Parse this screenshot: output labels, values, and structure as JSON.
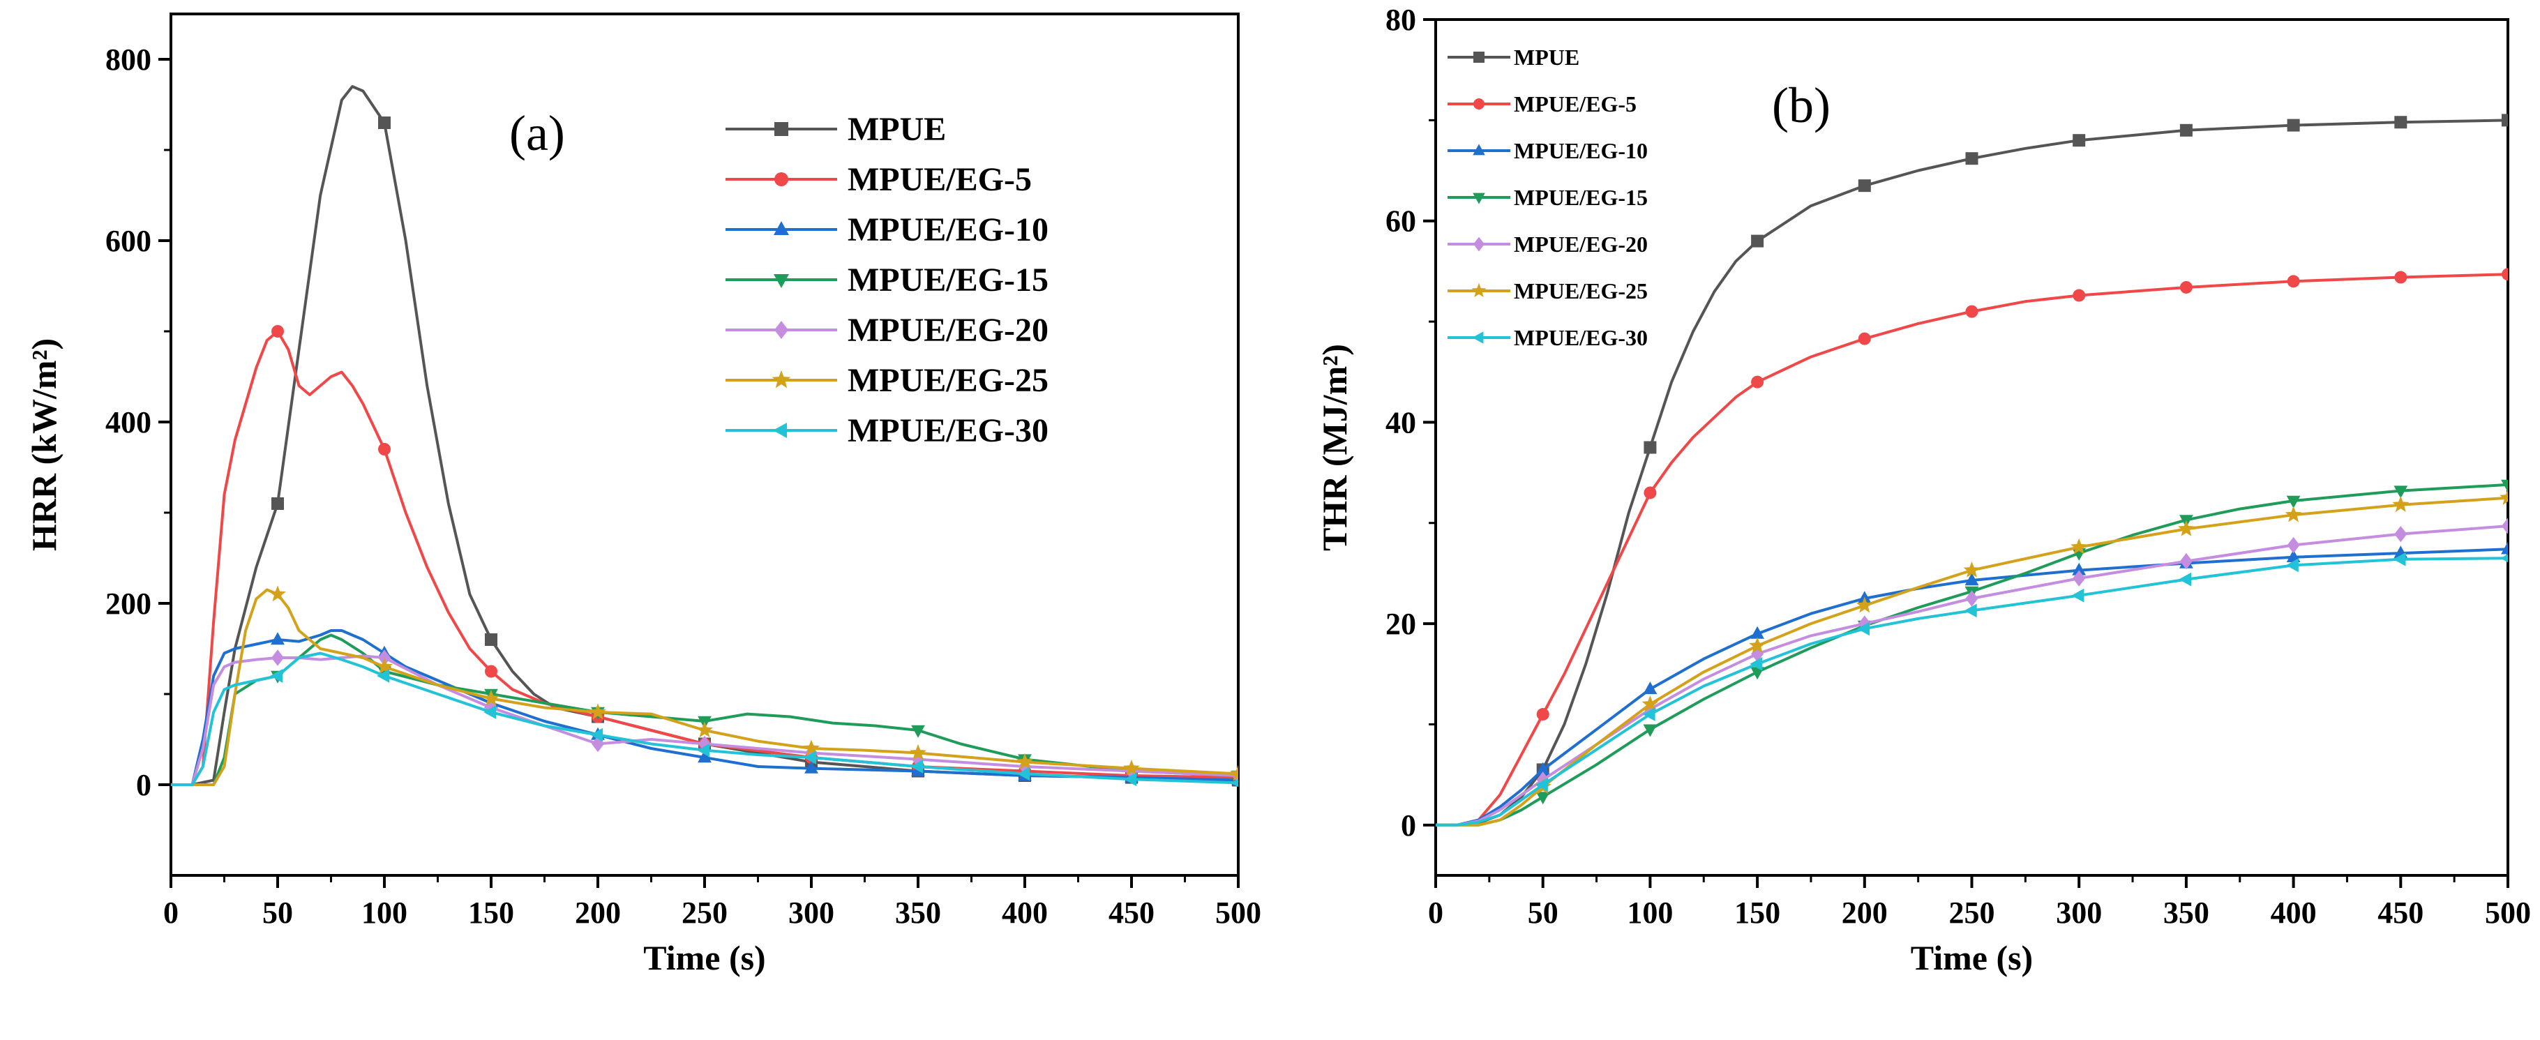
{
  "chart_data": [
    {
      "type": "line",
      "panel_label": "(a)",
      "xlabel": "Time (s)",
      "ylabel": "HRR (kW/m²)",
      "xlim": [
        0,
        500
      ],
      "ylim": [
        -100,
        850
      ],
      "xticks": [
        0,
        50,
        100,
        150,
        200,
        250,
        300,
        350,
        400,
        450,
        500
      ],
      "yticks": [
        0,
        200,
        400,
        600,
        800
      ],
      "legend_position": "top-right",
      "grid": false,
      "series": [
        {
          "name": "MPUE",
          "color": "#555555",
          "marker": "square",
          "x": [
            0,
            10,
            20,
            25,
            30,
            40,
            50,
            60,
            70,
            80,
            85,
            90,
            100,
            110,
            120,
            130,
            140,
            150,
            160,
            170,
            180,
            190,
            200,
            225,
            250,
            275,
            300,
            350,
            400,
            450,
            500
          ],
          "y": [
            0,
            0,
            5,
            80,
            150,
            240,
            310,
            480,
            650,
            755,
            770,
            765,
            730,
            600,
            440,
            310,
            210,
            160,
            125,
            100,
            85,
            80,
            75,
            60,
            45,
            35,
            25,
            15,
            10,
            8,
            5
          ]
        },
        {
          "name": "MPUE/EG-5",
          "color": "#f04848",
          "marker": "circle",
          "x": [
            0,
            10,
            15,
            20,
            25,
            30,
            40,
            45,
            50,
            55,
            60,
            65,
            70,
            75,
            80,
            85,
            90,
            100,
            110,
            120,
            130,
            140,
            150,
            160,
            175,
            200,
            225,
            250,
            300,
            350,
            400,
            450,
            500
          ],
          "y": [
            0,
            0,
            20,
            180,
            320,
            380,
            460,
            490,
            500,
            480,
            440,
            430,
            440,
            450,
            455,
            440,
            420,
            370,
            300,
            240,
            190,
            150,
            125,
            105,
            90,
            75,
            60,
            45,
            30,
            20,
            15,
            10,
            8
          ]
        },
        {
          "name": "MPUE/EG-10",
          "color": "#1e6fd0",
          "marker": "triangle-up",
          "x": [
            0,
            10,
            15,
            20,
            25,
            30,
            40,
            50,
            60,
            70,
            75,
            80,
            85,
            90,
            100,
            110,
            125,
            150,
            175,
            200,
            225,
            250,
            275,
            300,
            350,
            400,
            450,
            500
          ],
          "y": [
            0,
            0,
            50,
            120,
            145,
            150,
            155,
            160,
            158,
            165,
            170,
            170,
            165,
            160,
            145,
            130,
            115,
            90,
            70,
            55,
            40,
            30,
            20,
            18,
            15,
            10,
            8,
            5
          ]
        },
        {
          "name": "MPUE/EG-15",
          "color": "#1f9c5a",
          "marker": "triangle-down",
          "x": [
            0,
            10,
            20,
            25,
            30,
            40,
            50,
            60,
            70,
            75,
            80,
            90,
            100,
            125,
            150,
            175,
            200,
            225,
            250,
            270,
            290,
            310,
            330,
            350,
            370,
            400,
            450,
            500
          ],
          "y": [
            0,
            0,
            0,
            30,
            100,
            115,
            120,
            140,
            160,
            165,
            160,
            145,
            125,
            110,
            100,
            90,
            80,
            75,
            70,
            78,
            75,
            68,
            65,
            60,
            45,
            28,
            15,
            10
          ]
        },
        {
          "name": "MPUE/EG-20",
          "color": "#c48de0",
          "marker": "diamond",
          "x": [
            0,
            10,
            15,
            20,
            25,
            30,
            40,
            50,
            60,
            70,
            80,
            90,
            100,
            125,
            150,
            175,
            200,
            225,
            250,
            275,
            300,
            350,
            400,
            450,
            500
          ],
          "y": [
            0,
            0,
            40,
            110,
            130,
            135,
            138,
            140,
            140,
            138,
            140,
            142,
            140,
            110,
            85,
            65,
            45,
            50,
            45,
            40,
            35,
            28,
            20,
            15,
            10
          ]
        },
        {
          "name": "MPUE/EG-25",
          "color": "#d4a21a",
          "marker": "star",
          "x": [
            0,
            10,
            20,
            25,
            30,
            35,
            40,
            45,
            50,
            55,
            60,
            70,
            80,
            90,
            100,
            125,
            150,
            175,
            200,
            225,
            250,
            275,
            300,
            325,
            350,
            375,
            400,
            450,
            500
          ],
          "y": [
            0,
            0,
            0,
            20,
            100,
            170,
            205,
            215,
            210,
            195,
            170,
            150,
            145,
            140,
            130,
            110,
            95,
            85,
            80,
            78,
            60,
            48,
            40,
            38,
            35,
            30,
            25,
            18,
            12
          ]
        },
        {
          "name": "MPUE/EG-30",
          "color": "#22c3d6",
          "marker": "triangle-left",
          "x": [
            0,
            10,
            15,
            20,
            25,
            30,
            40,
            50,
            60,
            70,
            80,
            90,
            100,
            125,
            150,
            175,
            200,
            225,
            250,
            275,
            300,
            350,
            400,
            450,
            500
          ],
          "y": [
            0,
            0,
            20,
            80,
            105,
            110,
            115,
            120,
            140,
            145,
            138,
            130,
            120,
            100,
            80,
            65,
            55,
            45,
            38,
            33,
            30,
            20,
            12,
            6,
            2
          ]
        }
      ]
    },
    {
      "type": "line",
      "panel_label": "(b)",
      "xlabel": "Time (s)",
      "ylabel": "THR (MJ/m²)",
      "xlim": [
        0,
        500
      ],
      "ylim": [
        -5,
        80
      ],
      "xticks": [
        0,
        50,
        100,
        150,
        200,
        250,
        300,
        350,
        400,
        450,
        500
      ],
      "yticks": [
        0,
        20,
        40,
        60,
        80
      ],
      "legend_position": "top-left",
      "grid": false,
      "series": [
        {
          "name": "MPUE",
          "color": "#555555",
          "marker": "square",
          "x": [
            0,
            10,
            20,
            30,
            40,
            50,
            60,
            70,
            80,
            90,
            100,
            110,
            120,
            130,
            140,
            150,
            175,
            200,
            225,
            250,
            275,
            300,
            350,
            400,
            450,
            500
          ],
          "y": [
            0,
            0,
            0.2,
            1,
            2.8,
            5.5,
            10,
            16,
            23,
            31,
            37.5,
            44,
            49,
            53,
            56,
            58,
            61.5,
            63.5,
            65,
            66.2,
            67.2,
            68,
            69,
            69.5,
            69.8,
            70
          ]
        },
        {
          "name": "MPUE/EG-5",
          "color": "#f04848",
          "marker": "circle",
          "x": [
            0,
            10,
            20,
            30,
            40,
            50,
            60,
            70,
            80,
            90,
            100,
            110,
            120,
            130,
            140,
            150,
            175,
            200,
            225,
            250,
            275,
            300,
            350,
            400,
            450,
            500
          ],
          "y": [
            0,
            0,
            0.5,
            3,
            7,
            11,
            15,
            19.5,
            24,
            28.5,
            33,
            36,
            38.5,
            40.5,
            42.5,
            44,
            46.5,
            48.3,
            49.8,
            51,
            52,
            52.6,
            53.4,
            54,
            54.4,
            54.7
          ]
        },
        {
          "name": "MPUE/EG-10",
          "color": "#1e6fd0",
          "marker": "triangle-up",
          "x": [
            0,
            10,
            20,
            30,
            40,
            50,
            75,
            100,
            125,
            150,
            175,
            200,
            225,
            250,
            300,
            350,
            400,
            450,
            500
          ],
          "y": [
            0,
            0,
            0.5,
            1.8,
            3.5,
            5.5,
            9.5,
            13.5,
            16.5,
            19,
            21,
            22.5,
            23.5,
            24.3,
            25.3,
            26,
            26.6,
            27,
            27.4
          ]
        },
        {
          "name": "MPUE/EG-15",
          "color": "#1f9c5a",
          "marker": "triangle-down",
          "x": [
            0,
            10,
            20,
            30,
            40,
            50,
            75,
            100,
            125,
            150,
            175,
            200,
            225,
            250,
            275,
            300,
            325,
            350,
            375,
            400,
            450,
            500
          ],
          "y": [
            0,
            0,
            0,
            0.5,
            1.5,
            2.8,
            6,
            9.5,
            12.5,
            15.2,
            17.6,
            19.8,
            21.6,
            23.2,
            25,
            27,
            28.8,
            30.3,
            31.4,
            32.2,
            33.2,
            33.8
          ]
        },
        {
          "name": "MPUE/EG-20",
          "color": "#c48de0",
          "marker": "diamond",
          "x": [
            0,
            10,
            20,
            30,
            40,
            50,
            75,
            100,
            125,
            150,
            175,
            200,
            225,
            250,
            300,
            350,
            400,
            450,
            500
          ],
          "y": [
            0,
            0,
            0.4,
            1.5,
            3,
            4.5,
            8,
            11.5,
            14.5,
            17,
            18.8,
            20,
            21.2,
            22.5,
            24.5,
            26.2,
            27.8,
            28.9,
            29.7
          ]
        },
        {
          "name": "MPUE/EG-25",
          "color": "#d4a21a",
          "marker": "star",
          "x": [
            0,
            10,
            20,
            30,
            40,
            50,
            75,
            100,
            125,
            150,
            175,
            200,
            225,
            250,
            300,
            350,
            400,
            450,
            500
          ],
          "y": [
            0,
            0,
            0,
            0.5,
            2,
            3.8,
            8,
            12,
            15.2,
            17.8,
            20,
            21.8,
            23.6,
            25.3,
            27.6,
            29.4,
            30.8,
            31.8,
            32.5
          ]
        },
        {
          "name": "MPUE/EG-30",
          "color": "#22c3d6",
          "marker": "triangle-left",
          "x": [
            0,
            10,
            20,
            30,
            40,
            50,
            75,
            100,
            125,
            150,
            175,
            200,
            225,
            250,
            300,
            350,
            400,
            450,
            500
          ],
          "y": [
            0,
            0,
            0.3,
            1,
            2.5,
            4,
            7.5,
            11,
            13.8,
            16,
            18,
            19.5,
            20.5,
            21.3,
            22.8,
            24.4,
            25.8,
            26.4,
            26.5
          ]
        }
      ]
    }
  ]
}
